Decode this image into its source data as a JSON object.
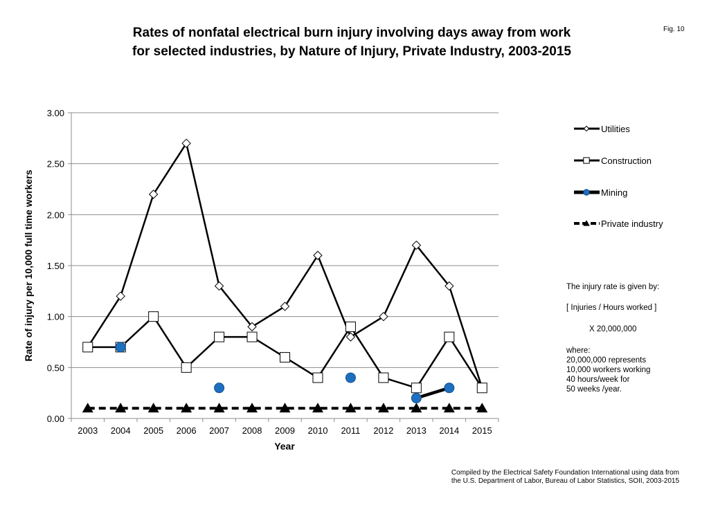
{
  "figure_label": "Fig. 10",
  "chart_data": {
    "type": "line",
    "title_lines": [
      "Rates of nonfatal electrical burn injury involving days away from work",
      "for selected industries, by Nature of Injury, Private Industry,  2003-2015"
    ],
    "xlabel": "Year",
    "ylabel": "Rate of injury per 10,000 full time workers",
    "categories": [
      "2003",
      "2004",
      "2005",
      "2006",
      "2007",
      "2008",
      "2009",
      "2010",
      "2011",
      "2012",
      "2013",
      "2014",
      "2015"
    ],
    "ylim": [
      0,
      3
    ],
    "yticks": [
      "0.00",
      "0.50",
      "1.00",
      "1.50",
      "2.00",
      "2.50",
      "3.00"
    ],
    "grid": true,
    "legend_position": "right",
    "series": [
      {
        "name": "Utilities",
        "marker": "diamond-open",
        "line": "solid",
        "color": "#000000",
        "values": [
          0.7,
          1.2,
          2.2,
          2.7,
          1.3,
          0.9,
          1.1,
          1.6,
          0.8,
          1.0,
          1.7,
          1.3,
          0.3
        ]
      },
      {
        "name": "Construction",
        "marker": "square-open",
        "line": "solid",
        "color": "#000000",
        "values": [
          0.7,
          0.7,
          1.0,
          0.5,
          0.8,
          0.8,
          0.6,
          0.4,
          0.9,
          0.4,
          0.3,
          0.8,
          0.3
        ]
      },
      {
        "name": "Mining",
        "marker": "circle-filled",
        "line": "solid-thick",
        "color": "#1F6FBF",
        "values": [
          null,
          0.7,
          null,
          null,
          0.3,
          null,
          null,
          null,
          0.4,
          null,
          0.2,
          0.3,
          null
        ]
      },
      {
        "name": "Private industry",
        "marker": "triangle-filled",
        "line": "dashed",
        "color": "#000000",
        "values": [
          0.1,
          0.1,
          0.1,
          0.1,
          0.1,
          0.1,
          0.1,
          0.1,
          0.1,
          0.1,
          0.1,
          0.1,
          0.1
        ]
      }
    ],
    "annotations": {
      "formula_intro": "The injury rate is given by:",
      "formula": "[ Injuries / Hours worked ]",
      "multiplier": "X   20,000,000",
      "where": "where:",
      "explanation": [
        "20,000,000  represents",
        "10,000 workers working",
        "40 hours/week for",
        "50 weeks /year."
      ]
    },
    "source": [
      "Compiled by the Electrical Safety Foundation International using data from",
      "the U.S. Department of Labor, Bureau of Labor Statistics, SOII, 2003-2015"
    ]
  }
}
